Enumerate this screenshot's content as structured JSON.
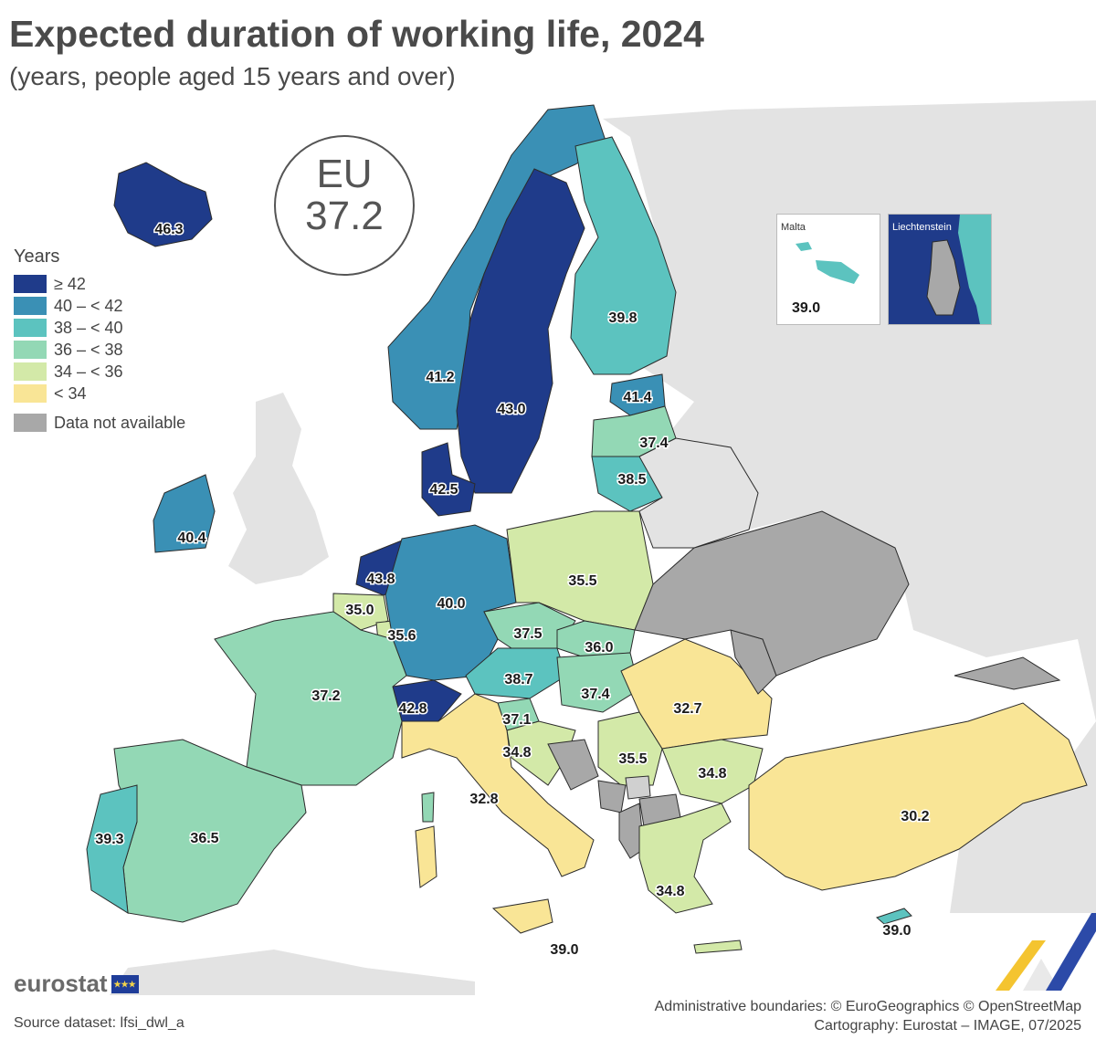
{
  "title": "Expected duration of working life, 2024",
  "subtitle": "(years, people aged 15 years and over)",
  "eu_badge": {
    "label": "EU",
    "value": "37.2"
  },
  "legend": {
    "title": "Years",
    "items": [
      {
        "label": "≥ 42",
        "color": "#1f3b8a"
      },
      {
        "label": "40 – < 42",
        "color": "#3a90b5"
      },
      {
        "label": "38 – < 40",
        "color": "#5cc3bf"
      },
      {
        "label": "36 – < 38",
        "color": "#93d8b5"
      },
      {
        "label": "34 – < 36",
        "color": "#d3e9a8"
      },
      {
        "label": "< 34",
        "color": "#f9e596"
      }
    ],
    "na": {
      "label": "Data not available",
      "color": "#a8a8a8"
    }
  },
  "map_values": {
    "iceland": "46.3",
    "norway": "41.2",
    "sweden": "43.0",
    "finland": "39.8",
    "estonia": "41.4",
    "latvia": "37.4",
    "lithuania": "38.5",
    "denmark": "42.5",
    "ireland": "40.4",
    "netherlands": "43.8",
    "belgium": "35.0",
    "luxembourg": "35.6",
    "germany": "40.0",
    "poland": "35.5",
    "czechia": "37.5",
    "slovakia": "36.0",
    "austria": "38.7",
    "hungary": "37.4",
    "switzerland": "42.8",
    "france": "37.2",
    "slovenia": "37.1",
    "croatia": "34.8",
    "serbia": "35.5",
    "romania": "32.7",
    "bulgaria": "34.8",
    "italy": "32.8",
    "spain": "36.5",
    "portugal": "39.3",
    "greece": "34.8",
    "turkey": "30.2",
    "cyprus": "39.0",
    "malta_south": "39.0"
  },
  "insets": [
    {
      "name": "Malta",
      "value": "39.0"
    },
    {
      "name": "Liechtenstein",
      "value": ""
    }
  ],
  "logo_text": "eurostat",
  "source": "Source dataset: lfsi_dwl_a",
  "credits_line1": "Administrative boundaries: © EuroGeographics © OpenStreetMap",
  "credits_line2": "Cartography: Eurostat – IMAGE, 07/2025"
}
